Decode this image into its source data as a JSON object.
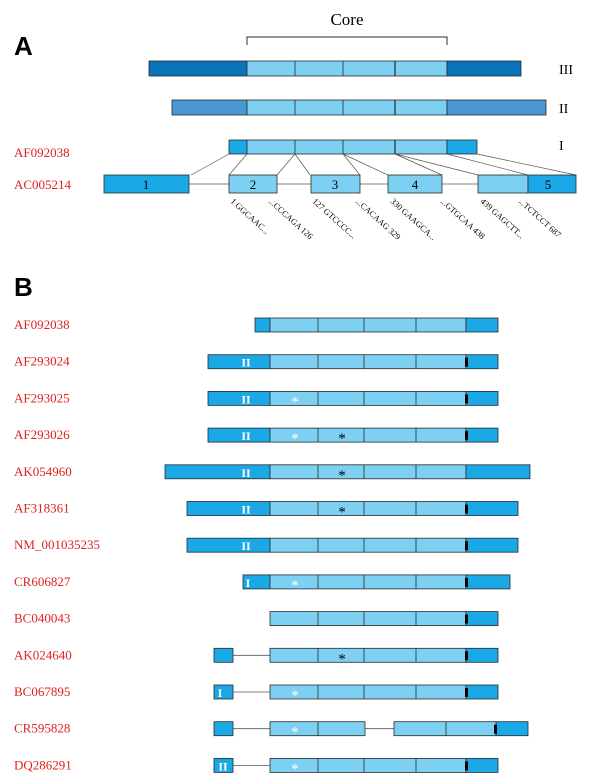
{
  "panels": [
    {
      "label": "A"
    },
    {
      "label": "B"
    }
  ],
  "colors": {
    "core_fill": "#7dd0f2",
    "dark_blue": "#0b74b8",
    "medium_blue": "#4a97d4",
    "bright_blue": "#1aa8e6",
    "stroke": "#2a2a2a",
    "accession_red": "#e02020"
  },
  "panel_a": {
    "core_label": "Core",
    "types": [
      {
        "label": "III",
        "style": "dark"
      },
      {
        "label": "II",
        "style": "medium"
      },
      {
        "label": "I",
        "style": "bright"
      }
    ],
    "transcript": {
      "accession": "AF092038"
    },
    "genomic": {
      "accession": "AC005214",
      "exons": [
        "1",
        "2",
        "3",
        "4",
        "5"
      ]
    },
    "sequence_labels": [
      "1 GGCAAC...",
      "...CCCAGA 126",
      "127 GTCCCC...",
      "...CACAAG 329",
      "330 GAAGCA...",
      "...GTGCAA 438",
      "439 GAGCTT...",
      "...TCTCCT 687"
    ]
  },
  "panel_b": {
    "symbols": {
      "star": "*",
      "double_bar": "II",
      "single_bar": "I"
    },
    "rows": [
      {
        "accession": "AF092038",
        "layout": "full",
        "left": "short",
        "right": "short",
        "marks": []
      },
      {
        "accession": "AF293024",
        "layout": "full",
        "left": "long",
        "right": "short",
        "marks": [
          "double_bar",
          "end_bar"
        ]
      },
      {
        "accession": "AF293025",
        "layout": "full",
        "left": "long",
        "right": "short",
        "marks": [
          "double_bar",
          "white_star",
          "end_bar"
        ]
      },
      {
        "accession": "AF293026",
        "layout": "full",
        "left": "long",
        "right": "short",
        "marks": [
          "double_bar",
          "white_star",
          "black_star",
          "end_bar"
        ]
      },
      {
        "accession": "AK054960",
        "layout": "full",
        "left": "xlong",
        "right": "long",
        "marks": [
          "double_bar",
          "black_star"
        ]
      },
      {
        "accession": "AF318361",
        "layout": "full",
        "left": "long2",
        "right": "mid",
        "marks": [
          "double_bar",
          "black_star",
          "end_bar"
        ]
      },
      {
        "accession": "NM_001035235",
        "layout": "full",
        "left": "long2",
        "right": "mid",
        "marks": [
          "double_bar",
          "end_bar"
        ]
      },
      {
        "accession": "CR606827",
        "layout": "full",
        "left": "tiny",
        "right": "shortish",
        "marks": [
          "single_bar",
          "white_star",
          "end_bar"
        ]
      },
      {
        "accession": "BC040043",
        "layout": "full",
        "left": "none",
        "right": "short",
        "marks": [
          "end_bar"
        ]
      },
      {
        "accession": "AK024640",
        "layout": "gap1",
        "left": "small",
        "right": "short",
        "marks": [
          "black_star",
          "end_bar"
        ]
      },
      {
        "accession": "BC067895",
        "layout": "gap1",
        "left": "small",
        "right": "short",
        "marks": [
          "single_bar",
          "white_star",
          "end_bar"
        ]
      },
      {
        "accession": "CR595828",
        "layout": "gap2",
        "left": "small",
        "right": "short",
        "marks": [
          "white_star",
          "end_bar"
        ]
      },
      {
        "accession": "DQ286291",
        "layout": "gap1",
        "left": "small",
        "right": "short",
        "marks": [
          "double_bar",
          "white_star",
          "end_bar"
        ]
      }
    ]
  }
}
